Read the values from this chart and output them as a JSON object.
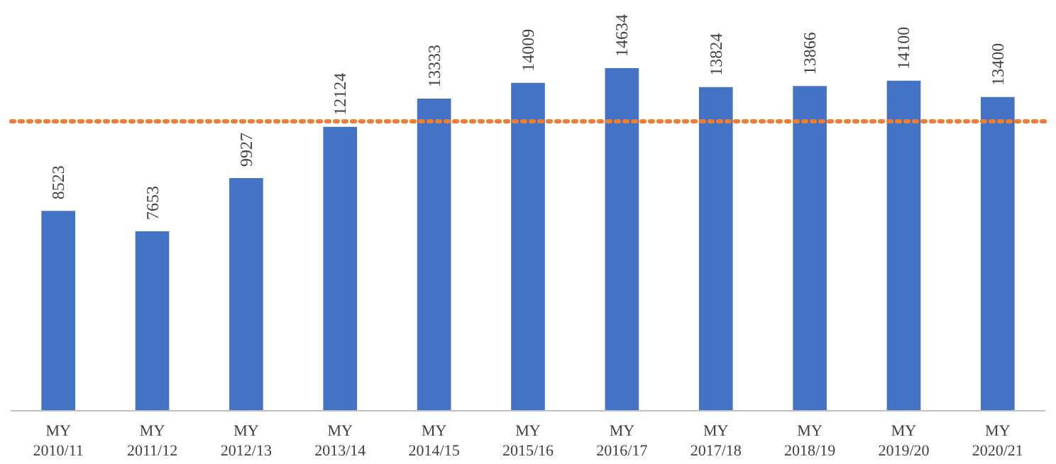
{
  "chart_data": {
    "type": "bar",
    "categories": [
      "MY 2010/11",
      "MY 2011/12",
      "MY 2012/13",
      "MY 2013/14",
      "MY 2014/15",
      "MY 2015/16",
      "MY 2016/17",
      "MY 2017/18",
      "MY 2018/19",
      "MY 2019/20",
      "MY 2020/21"
    ],
    "values": [
      8523,
      7653,
      9927,
      12124,
      13333,
      14009,
      14634,
      13824,
      13866,
      14100,
      13400
    ],
    "color": "#4472c4",
    "data_labels": true,
    "tick_labels": "x",
    "ref_lines": [
      {
        "axis": "y",
        "value": 12400,
        "color": "#ed7d31",
        "line_style": "dotted"
      }
    ]
  }
}
